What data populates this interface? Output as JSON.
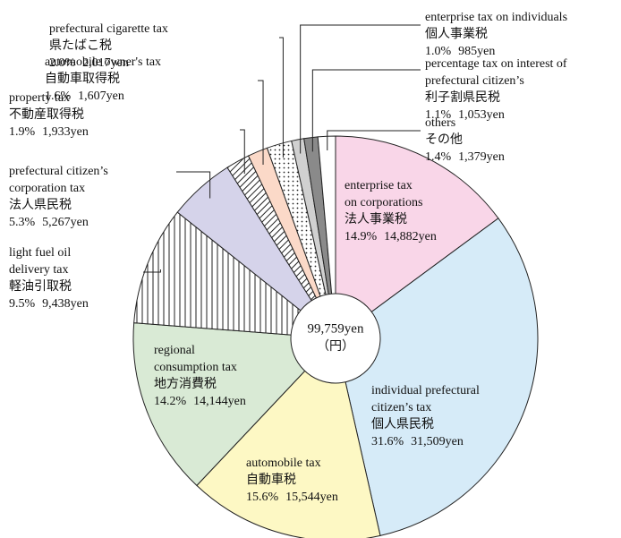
{
  "chart_data": {
    "type": "pie",
    "center_label": "99,759yen",
    "center_sub": "（円）",
    "labels": [
      {
        "lines": [
          "enterprise tax",
          "on corporations"
        ],
        "ja": "法人事業税"
      },
      {
        "lines": [
          "individual prefectural",
          "citizen’s tax"
        ],
        "ja": "個人県民税"
      },
      {
        "lines": [
          "automobile tax"
        ],
        "ja": "自動車税"
      },
      {
        "lines": [
          "regional",
          "consumption tax"
        ],
        "ja": "地方消費税"
      },
      {
        "lines": [
          "light fuel oil",
          "delivery tax"
        ],
        "ja": "軽油引取税"
      },
      {
        "lines": [
          "prefectural citizen’s",
          "corporation tax"
        ],
        "ja": "法人県民税"
      },
      {
        "lines": [
          "property tax"
        ],
        "ja": "不動産取得税"
      },
      {
        "lines": [
          "automobile owner's tax"
        ],
        "ja": "自動車取得税"
      },
      {
        "lines": [
          "prefectural cigarette tax"
        ],
        "ja": "県たばこ税"
      },
      {
        "lines": [
          "enterprise tax on individuals"
        ],
        "ja": "個人事業税"
      },
      {
        "lines": [
          "percentage tax on interest of",
          "prefectural citizen’s"
        ],
        "ja": "利子割県民税"
      },
      {
        "lines": [
          "others"
        ],
        "ja": "その他"
      }
    ],
    "values": [
      14.9,
      31.6,
      15.6,
      14.2,
      9.5,
      5.3,
      1.9,
      1.6,
      2.0,
      1.0,
      1.1,
      1.4
    ],
    "value_labels": [
      "14.9%",
      "31.6%",
      "15.6%",
      "14.2%",
      "9.5%",
      "5.3%",
      "1.9%",
      "1.6%",
      "2.0%",
      "1.0%",
      "1.1%",
      "1.4%"
    ],
    "amounts": [
      14882,
      31509,
      15544,
      14144,
      9438,
      5267,
      1933,
      1607,
      2017,
      985,
      1053,
      1379
    ],
    "amount_labels": [
      "14,882yen",
      "31,509yen",
      "15,544yen",
      "14,144yen",
      "9,438yen",
      "5,267yen",
      "1,933yen",
      "1,607yen",
      "2,017yen",
      "985yen",
      "1,053yen",
      "1,379yen"
    ],
    "colors": [
      "#f9d6e8",
      "#d6ebf8",
      "#fdf8c4",
      "#d9ead5",
      "#ffffff",
      "#d5d3ea",
      "#ffffff",
      "#fbd9c8",
      "#ffffff",
      "#d0d0d0",
      "#8a8a8a",
      "#ffffff"
    ],
    "patterns": [
      "none",
      "none",
      "none",
      "none",
      "vertical",
      "none",
      "diagonal",
      "none",
      "dots",
      "none",
      "none",
      "none"
    ]
  }
}
